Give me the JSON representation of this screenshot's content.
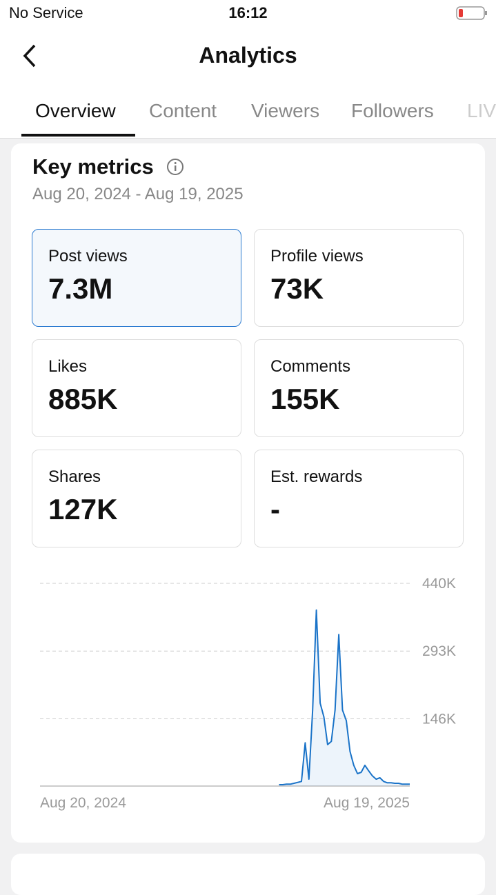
{
  "status_bar": {
    "carrier": "No Service",
    "time": "16:12"
  },
  "header": {
    "title": "Analytics"
  },
  "tabs": [
    "Overview",
    "Content",
    "Viewers",
    "Followers",
    "LIVE"
  ],
  "key_metrics": {
    "title": "Key metrics",
    "date_range": "Aug 20, 2024 - Aug 19, 2025",
    "metrics": [
      {
        "label": "Post views",
        "value": "7.3M"
      },
      {
        "label": "Profile views",
        "value": "73K"
      },
      {
        "label": "Likes",
        "value": "885K"
      },
      {
        "label": "Comments",
        "value": "155K"
      },
      {
        "label": "Shares",
        "value": "127K"
      },
      {
        "label": "Est. rewards",
        "value": "-"
      }
    ]
  },
  "chart_data": {
    "type": "line",
    "color": "#1a73c8",
    "grid": true,
    "ylim": [
      0,
      440000
    ],
    "yticks": [
      {
        "value": 146000,
        "label": "146K"
      },
      {
        "value": 293000,
        "label": "293K"
      },
      {
        "value": 440000,
        "label": "440K"
      }
    ],
    "categories": [
      "Aug 20, 2024",
      null,
      null,
      null,
      null,
      null,
      null,
      null,
      null,
      null,
      null,
      null,
      null,
      null,
      null,
      null,
      null,
      null,
      null,
      null,
      null,
      null,
      null,
      null,
      null,
      null,
      null,
      null,
      null,
      null,
      null,
      null,
      null,
      null,
      null,
      null,
      null,
      null,
      null,
      null,
      null,
      null,
      null,
      null,
      null,
      null,
      null,
      null,
      null,
      null,
      null,
      null,
      null,
      null,
      null,
      null,
      null,
      null,
      null,
      null,
      null,
      null,
      null,
      null,
      null,
      null,
      null,
      null,
      null,
      null,
      null,
      null,
      null,
      null,
      null,
      null,
      null,
      null,
      null,
      null,
      null,
      null,
      null,
      null,
      null,
      null,
      null,
      null,
      null,
      null,
      null,
      null,
      null,
      null,
      null,
      null,
      null,
      null,
      null,
      "Aug 19, 2025"
    ],
    "values": [
      null,
      null,
      null,
      null,
      null,
      null,
      null,
      null,
      null,
      null,
      null,
      null,
      null,
      null,
      null,
      null,
      null,
      null,
      null,
      null,
      null,
      null,
      null,
      null,
      null,
      null,
      null,
      null,
      null,
      null,
      null,
      null,
      null,
      null,
      null,
      null,
      null,
      null,
      null,
      null,
      null,
      null,
      null,
      null,
      null,
      null,
      null,
      null,
      null,
      null,
      null,
      null,
      null,
      null,
      null,
      null,
      null,
      null,
      null,
      null,
      null,
      null,
      null,
      null,
      3000,
      3000,
      4000,
      4000,
      6000,
      8000,
      10000,
      94000,
      15000,
      165000,
      382000,
      180000,
      150000,
      90000,
      97000,
      165000,
      329000,
      165000,
      142000,
      75000,
      45000,
      27000,
      30000,
      45000,
      33000,
      22000,
      15000,
      18000,
      10000,
      7000,
      7000,
      6000,
      6000,
      4000,
      4000,
      4000
    ]
  }
}
